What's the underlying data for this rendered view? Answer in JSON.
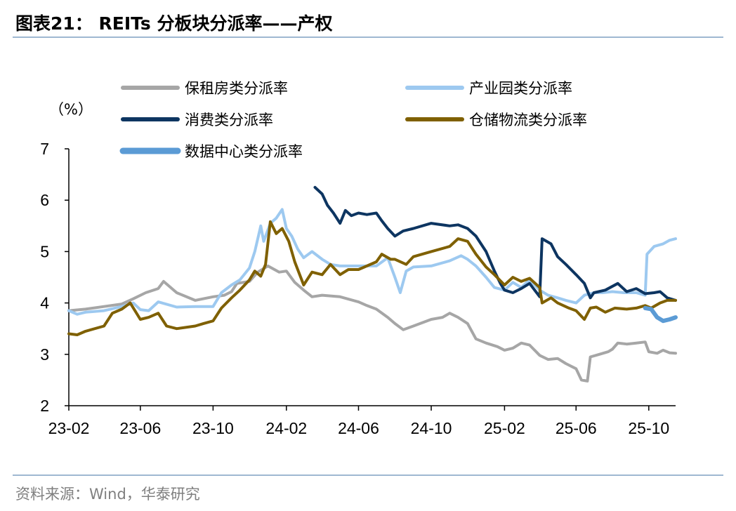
{
  "header": {
    "title": "图表21： REITs 分板块分派率——产权"
  },
  "footer": {
    "source": "资料来源：Wind，华泰研究"
  },
  "chart_data": {
    "type": "line",
    "ylabel": "（%）",
    "ylim": [
      2,
      7
    ],
    "yticks": [
      "2",
      "3",
      "4",
      "5",
      "6",
      "7"
    ],
    "x_range": [
      "2023-02-01",
      "2025-11-15"
    ],
    "xticks": [
      {
        "date": "2023-02-01",
        "label": "23-02"
      },
      {
        "date": "2023-06-01",
        "label": "23-06"
      },
      {
        "date": "2023-10-01",
        "label": "23-10"
      },
      {
        "date": "2024-02-01",
        "label": "24-02"
      },
      {
        "date": "2024-06-01",
        "label": "24-06"
      },
      {
        "date": "2024-10-01",
        "label": "24-10"
      },
      {
        "date": "2025-02-01",
        "label": "25-02"
      },
      {
        "date": "2025-06-01",
        "label": "25-06"
      },
      {
        "date": "2025-10-01",
        "label": "25-10"
      }
    ],
    "legend_position": "top",
    "series": [
      {
        "name": "保租房类分派率",
        "color": "#a6a6a6",
        "points": [
          [
            "2023-02-01",
            3.85
          ],
          [
            "2023-03-01",
            3.88
          ],
          [
            "2023-04-01",
            3.93
          ],
          [
            "2023-05-01",
            3.98
          ],
          [
            "2023-05-20",
            4.08
          ],
          [
            "2023-06-10",
            4.2
          ],
          [
            "2023-07-01",
            4.28
          ],
          [
            "2023-07-10",
            4.42
          ],
          [
            "2023-08-01",
            4.2
          ],
          [
            "2023-09-01",
            4.05
          ],
          [
            "2023-10-01",
            4.12
          ],
          [
            "2023-10-20",
            4.15
          ],
          [
            "2023-11-01",
            4.22
          ],
          [
            "2023-11-10",
            4.38
          ],
          [
            "2023-12-01",
            4.42
          ],
          [
            "2023-12-15",
            4.6
          ],
          [
            "2024-01-01",
            4.72
          ],
          [
            "2024-01-20",
            4.6
          ],
          [
            "2024-02-01",
            4.62
          ],
          [
            "2024-02-15",
            4.4
          ],
          [
            "2024-03-01",
            4.25
          ],
          [
            "2024-03-15",
            4.12
          ],
          [
            "2024-04-01",
            4.15
          ],
          [
            "2024-05-01",
            4.12
          ],
          [
            "2024-06-01",
            4.02
          ],
          [
            "2024-06-15",
            3.95
          ],
          [
            "2024-07-01",
            3.88
          ],
          [
            "2024-07-20",
            3.72
          ],
          [
            "2024-08-01",
            3.6
          ],
          [
            "2024-08-15",
            3.48
          ],
          [
            "2024-09-01",
            3.55
          ],
          [
            "2024-10-01",
            3.68
          ],
          [
            "2024-10-20",
            3.72
          ],
          [
            "2024-11-01",
            3.8
          ],
          [
            "2024-11-15",
            3.72
          ],
          [
            "2024-12-01",
            3.6
          ],
          [
            "2024-12-15",
            3.3
          ],
          [
            "2025-01-01",
            3.22
          ],
          [
            "2025-01-20",
            3.15
          ],
          [
            "2025-02-01",
            3.08
          ],
          [
            "2025-02-15",
            3.12
          ],
          [
            "2025-03-01",
            3.22
          ],
          [
            "2025-03-15",
            3.18
          ],
          [
            "2025-04-01",
            2.98
          ],
          [
            "2025-04-15",
            2.9
          ],
          [
            "2025-05-01",
            2.92
          ],
          [
            "2025-05-15",
            2.82
          ],
          [
            "2025-06-01",
            2.72
          ],
          [
            "2025-06-10",
            2.5
          ],
          [
            "2025-06-20",
            2.48
          ],
          [
            "2025-06-25",
            2.95
          ],
          [
            "2025-07-10",
            3.0
          ],
          [
            "2025-07-25",
            3.05
          ],
          [
            "2025-08-01",
            3.1
          ],
          [
            "2025-08-10",
            3.22
          ],
          [
            "2025-08-25",
            3.2
          ],
          [
            "2025-09-10",
            3.22
          ],
          [
            "2025-09-25",
            3.24
          ],
          [
            "2025-10-01",
            3.05
          ],
          [
            "2025-10-15",
            3.02
          ],
          [
            "2025-10-25",
            3.08
          ],
          [
            "2025-11-05",
            3.03
          ],
          [
            "2025-11-15",
            3.02
          ]
        ]
      },
      {
        "name": "产业园类分派率",
        "color": "#9dc9f0",
        "points": [
          [
            "2023-02-01",
            3.85
          ],
          [
            "2023-02-15",
            3.78
          ],
          [
            "2023-03-01",
            3.82
          ],
          [
            "2023-04-01",
            3.85
          ],
          [
            "2023-05-01",
            3.93
          ],
          [
            "2023-05-20",
            4.0
          ],
          [
            "2023-06-01",
            3.87
          ],
          [
            "2023-06-15",
            3.85
          ],
          [
            "2023-07-01",
            4.02
          ],
          [
            "2023-08-01",
            3.92
          ],
          [
            "2023-09-01",
            3.93
          ],
          [
            "2023-10-01",
            3.93
          ],
          [
            "2023-10-15",
            4.2
          ],
          [
            "2023-11-01",
            4.35
          ],
          [
            "2023-11-15",
            4.45
          ],
          [
            "2023-12-01",
            4.68
          ],
          [
            "2023-12-10",
            5.0
          ],
          [
            "2023-12-20",
            5.5
          ],
          [
            "2023-12-25",
            5.2
          ],
          [
            "2024-01-05",
            5.55
          ],
          [
            "2024-01-15",
            5.65
          ],
          [
            "2024-01-25",
            5.82
          ],
          [
            "2024-02-01",
            5.45
          ],
          [
            "2024-02-10",
            5.3
          ],
          [
            "2024-02-20",
            5.05
          ],
          [
            "2024-03-01",
            4.88
          ],
          [
            "2024-03-15",
            5.0
          ],
          [
            "2024-04-01",
            4.85
          ],
          [
            "2024-04-15",
            4.75
          ],
          [
            "2024-05-01",
            4.72
          ],
          [
            "2024-06-01",
            4.72
          ],
          [
            "2024-07-01",
            4.72
          ],
          [
            "2024-07-20",
            4.88
          ],
          [
            "2024-08-01",
            4.5
          ],
          [
            "2024-08-10",
            4.2
          ],
          [
            "2024-08-20",
            4.62
          ],
          [
            "2024-09-01",
            4.7
          ],
          [
            "2024-10-01",
            4.72
          ],
          [
            "2024-11-01",
            4.82
          ],
          [
            "2024-11-20",
            4.92
          ],
          [
            "2024-12-01",
            4.85
          ],
          [
            "2024-12-15",
            4.72
          ],
          [
            "2025-01-01",
            4.5
          ],
          [
            "2025-01-15",
            4.3
          ],
          [
            "2025-02-01",
            4.25
          ],
          [
            "2025-02-15",
            4.4
          ],
          [
            "2025-03-01",
            4.3
          ],
          [
            "2025-03-15",
            4.45
          ],
          [
            "2025-04-01",
            4.25
          ],
          [
            "2025-04-15",
            4.15
          ],
          [
            "2025-05-01",
            4.1
          ],
          [
            "2025-05-15",
            4.05
          ],
          [
            "2025-06-01",
            4.0
          ],
          [
            "2025-06-15",
            4.15
          ],
          [
            "2025-07-01",
            4.2
          ],
          [
            "2025-07-15",
            4.2
          ],
          [
            "2025-08-01",
            4.22
          ],
          [
            "2025-08-20",
            4.2
          ],
          [
            "2025-09-10",
            4.2
          ],
          [
            "2025-09-25",
            4.15
          ],
          [
            "2025-09-28",
            4.95
          ],
          [
            "2025-10-10",
            5.1
          ],
          [
            "2025-10-25",
            5.15
          ],
          [
            "2025-11-05",
            5.22
          ],
          [
            "2025-11-15",
            5.25
          ]
        ]
      },
      {
        "name": "消费类分派率",
        "color": "#0d3561",
        "points": [
          [
            "2024-03-20",
            6.25
          ],
          [
            "2024-04-01",
            6.12
          ],
          [
            "2024-04-10",
            5.9
          ],
          [
            "2024-04-20",
            5.75
          ],
          [
            "2024-05-01",
            5.55
          ],
          [
            "2024-05-10",
            5.8
          ],
          [
            "2024-05-20",
            5.7
          ],
          [
            "2024-06-01",
            5.75
          ],
          [
            "2024-06-15",
            5.72
          ],
          [
            "2024-07-01",
            5.75
          ],
          [
            "2024-07-10",
            5.6
          ],
          [
            "2024-07-20",
            5.45
          ],
          [
            "2024-08-01",
            5.3
          ],
          [
            "2024-08-15",
            5.4
          ],
          [
            "2024-09-01",
            5.45
          ],
          [
            "2024-10-01",
            5.55
          ],
          [
            "2024-11-01",
            5.5
          ],
          [
            "2024-11-15",
            5.52
          ],
          [
            "2024-12-01",
            5.45
          ],
          [
            "2024-12-15",
            5.3
          ],
          [
            "2025-01-01",
            5.0
          ],
          [
            "2025-01-15",
            4.62
          ],
          [
            "2025-01-25",
            4.38
          ],
          [
            "2025-02-01",
            4.25
          ],
          [
            "2025-02-15",
            4.2
          ],
          [
            "2025-03-01",
            4.28
          ],
          [
            "2025-03-15",
            4.38
          ],
          [
            "2025-04-01",
            4.12
          ],
          [
            "2025-04-05",
            5.25
          ],
          [
            "2025-04-20",
            5.15
          ],
          [
            "2025-05-01",
            4.9
          ],
          [
            "2025-05-15",
            4.75
          ],
          [
            "2025-06-01",
            4.55
          ],
          [
            "2025-06-15",
            4.38
          ],
          [
            "2025-06-25",
            4.1
          ],
          [
            "2025-07-01",
            4.2
          ],
          [
            "2025-07-20",
            4.25
          ],
          [
            "2025-08-10",
            4.38
          ],
          [
            "2025-08-25",
            4.22
          ],
          [
            "2025-09-10",
            4.28
          ],
          [
            "2025-09-25",
            4.18
          ],
          [
            "2025-10-10",
            4.2
          ],
          [
            "2025-10-20",
            4.22
          ],
          [
            "2025-11-01",
            4.1
          ],
          [
            "2025-11-15",
            4.05
          ]
        ]
      },
      {
        "name": "仓储物流类分派率",
        "color": "#7f6000",
        "points": [
          [
            "2023-02-01",
            3.4
          ],
          [
            "2023-02-15",
            3.38
          ],
          [
            "2023-03-01",
            3.45
          ],
          [
            "2023-04-01",
            3.55
          ],
          [
            "2023-04-15",
            3.8
          ],
          [
            "2023-05-01",
            3.88
          ],
          [
            "2023-05-15",
            4.0
          ],
          [
            "2023-06-01",
            3.68
          ],
          [
            "2023-06-15",
            3.72
          ],
          [
            "2023-07-01",
            3.8
          ],
          [
            "2023-07-15",
            3.55
          ],
          [
            "2023-08-01",
            3.5
          ],
          [
            "2023-09-01",
            3.55
          ],
          [
            "2023-09-15",
            3.6
          ],
          [
            "2023-10-01",
            3.65
          ],
          [
            "2023-10-15",
            3.9
          ],
          [
            "2023-11-01",
            4.1
          ],
          [
            "2023-11-15",
            4.25
          ],
          [
            "2023-12-01",
            4.45
          ],
          [
            "2023-12-10",
            4.62
          ],
          [
            "2023-12-20",
            4.52
          ],
          [
            "2023-12-28",
            4.75
          ],
          [
            "2024-01-05",
            5.58
          ],
          [
            "2024-01-15",
            5.35
          ],
          [
            "2024-01-25",
            5.45
          ],
          [
            "2024-02-05",
            5.2
          ],
          [
            "2024-02-15",
            4.8
          ],
          [
            "2024-03-01",
            4.35
          ],
          [
            "2024-03-15",
            4.6
          ],
          [
            "2024-04-01",
            4.55
          ],
          [
            "2024-04-15",
            4.75
          ],
          [
            "2024-05-01",
            4.55
          ],
          [
            "2024-05-15",
            4.65
          ],
          [
            "2024-06-01",
            4.65
          ],
          [
            "2024-06-15",
            4.72
          ],
          [
            "2024-07-01",
            4.8
          ],
          [
            "2024-07-10",
            4.95
          ],
          [
            "2024-07-25",
            4.85
          ],
          [
            "2024-08-01",
            4.85
          ],
          [
            "2024-08-20",
            4.75
          ],
          [
            "2024-09-01",
            4.9
          ],
          [
            "2024-10-01",
            5.0
          ],
          [
            "2024-11-01",
            5.1
          ],
          [
            "2024-11-15",
            5.25
          ],
          [
            "2024-12-01",
            5.2
          ],
          [
            "2024-12-15",
            4.95
          ],
          [
            "2025-01-01",
            4.7
          ],
          [
            "2025-01-15",
            4.55
          ],
          [
            "2025-02-01",
            4.35
          ],
          [
            "2025-02-15",
            4.5
          ],
          [
            "2025-03-01",
            4.42
          ],
          [
            "2025-03-15",
            4.48
          ],
          [
            "2025-04-01",
            4.3
          ],
          [
            "2025-04-05",
            4.0
          ],
          [
            "2025-04-20",
            4.1
          ],
          [
            "2025-05-01",
            4.0
          ],
          [
            "2025-05-20",
            3.9
          ],
          [
            "2025-06-01",
            3.85
          ],
          [
            "2025-06-15",
            3.68
          ],
          [
            "2025-06-25",
            3.9
          ],
          [
            "2025-07-05",
            3.92
          ],
          [
            "2025-07-20",
            3.82
          ],
          [
            "2025-08-05",
            3.9
          ],
          [
            "2025-08-25",
            3.88
          ],
          [
            "2025-09-10",
            3.9
          ],
          [
            "2025-09-25",
            3.95
          ],
          [
            "2025-10-05",
            3.9
          ],
          [
            "2025-10-20",
            4.0
          ],
          [
            "2025-11-01",
            4.05
          ],
          [
            "2025-11-15",
            4.05
          ]
        ]
      },
      {
        "name": "数据中心类分派率",
        "color": "#5b9bd5",
        "points": [
          [
            "2025-09-25",
            3.9
          ],
          [
            "2025-10-05",
            3.88
          ],
          [
            "2025-10-15",
            3.72
          ],
          [
            "2025-10-25",
            3.65
          ],
          [
            "2025-11-05",
            3.68
          ],
          [
            "2025-11-15",
            3.72
          ]
        ]
      }
    ]
  }
}
